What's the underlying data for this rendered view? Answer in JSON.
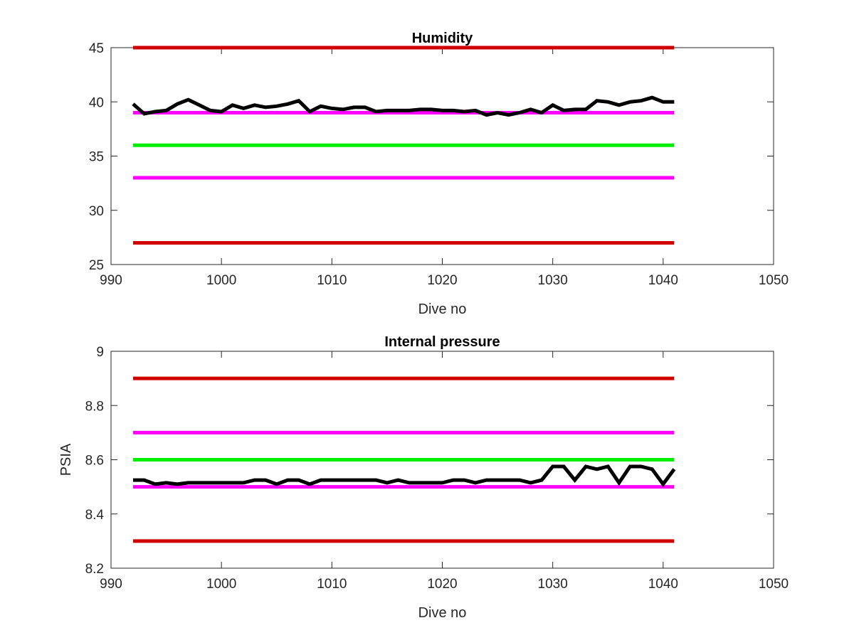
{
  "chart_data": [
    {
      "type": "line",
      "title": "Humidity",
      "xlabel": "Dive no",
      "ylabel": "",
      "xlim": [
        990,
        1050
      ],
      "ylim": [
        25,
        45
      ],
      "xticks": [
        990,
        1000,
        1010,
        1020,
        1030,
        1040,
        1050
      ],
      "yticks": [
        25,
        30,
        35,
        40,
        45
      ],
      "grid": false,
      "reference_lines": [
        {
          "y": 45,
          "x": [
            992,
            1041
          ],
          "color": "#d10000"
        },
        {
          "y": 39,
          "x": [
            992,
            1041
          ],
          "color": "#ff00ff"
        },
        {
          "y": 36,
          "x": [
            992,
            1041
          ],
          "color": "#00ee00"
        },
        {
          "y": 33,
          "x": [
            992,
            1041
          ],
          "color": "#ff00ff"
        },
        {
          "y": 27,
          "x": [
            992,
            1041
          ],
          "color": "#d10000"
        }
      ],
      "series": [
        {
          "color": "#000000",
          "x": [
            992,
            993,
            994,
            995,
            996,
            997,
            998,
            999,
            1000,
            1001,
            1002,
            1003,
            1004,
            1005,
            1006,
            1007,
            1008,
            1009,
            1010,
            1011,
            1012,
            1013,
            1014,
            1015,
            1016,
            1017,
            1018,
            1019,
            1020,
            1021,
            1022,
            1023,
            1024,
            1025,
            1026,
            1027,
            1028,
            1029,
            1030,
            1031,
            1032,
            1033,
            1034,
            1035,
            1036,
            1037,
            1038,
            1039,
            1040,
            1041
          ],
          "values": [
            39.8,
            38.9,
            39.1,
            39.2,
            39.8,
            40.2,
            39.7,
            39.2,
            39.1,
            39.7,
            39.4,
            39.7,
            39.5,
            39.6,
            39.8,
            40.1,
            39.1,
            39.6,
            39.4,
            39.3,
            39.5,
            39.5,
            39.1,
            39.2,
            39.2,
            39.2,
            39.3,
            39.3,
            39.2,
            39.2,
            39.1,
            39.2,
            38.8,
            39.0,
            38.8,
            39.0,
            39.3,
            39.0,
            39.7,
            39.2,
            39.3,
            39.3,
            40.1,
            40.0,
            39.7,
            40.0,
            40.1,
            40.4,
            40.0,
            40.0
          ]
        }
      ]
    },
    {
      "type": "line",
      "title": "Internal pressure",
      "xlabel": "Dive no",
      "ylabel": "PSIA",
      "xlim": [
        990,
        1050
      ],
      "ylim": [
        8.2,
        9
      ],
      "xticks": [
        990,
        1000,
        1010,
        1020,
        1030,
        1040,
        1050
      ],
      "yticks": [
        "8.2",
        "8.4",
        "8.6",
        "8.8",
        "9"
      ],
      "grid": false,
      "reference_lines": [
        {
          "y": 8.9,
          "x": [
            992,
            1041
          ],
          "color": "#d10000"
        },
        {
          "y": 8.7,
          "x": [
            992,
            1041
          ],
          "color": "#ff00ff"
        },
        {
          "y": 8.6,
          "x": [
            992,
            1041
          ],
          "color": "#00ee00"
        },
        {
          "y": 8.5,
          "x": [
            992,
            1041
          ],
          "color": "#ff00ff"
        },
        {
          "y": 8.3,
          "x": [
            992,
            1041
          ],
          "color": "#d10000"
        }
      ],
      "series": [
        {
          "color": "#000000",
          "x": [
            992,
            993,
            994,
            995,
            996,
            997,
            998,
            999,
            1000,
            1001,
            1002,
            1003,
            1004,
            1005,
            1006,
            1007,
            1008,
            1009,
            1010,
            1011,
            1012,
            1013,
            1014,
            1015,
            1016,
            1017,
            1018,
            1019,
            1020,
            1021,
            1022,
            1023,
            1024,
            1025,
            1026,
            1027,
            1028,
            1029,
            1030,
            1031,
            1032,
            1033,
            1034,
            1035,
            1036,
            1037,
            1038,
            1039,
            1040,
            1041
          ],
          "values": [
            8.525,
            8.525,
            8.51,
            8.515,
            8.51,
            8.515,
            8.515,
            8.515,
            8.515,
            8.515,
            8.515,
            8.525,
            8.525,
            8.51,
            8.525,
            8.525,
            8.51,
            8.525,
            8.525,
            8.525,
            8.525,
            8.525,
            8.525,
            8.515,
            8.525,
            8.515,
            8.515,
            8.515,
            8.515,
            8.525,
            8.525,
            8.515,
            8.525,
            8.525,
            8.525,
            8.525,
            8.515,
            8.525,
            8.575,
            8.575,
            8.525,
            8.575,
            8.565,
            8.575,
            8.515,
            8.575,
            8.575,
            8.565,
            8.51,
            8.565
          ]
        }
      ]
    }
  ]
}
